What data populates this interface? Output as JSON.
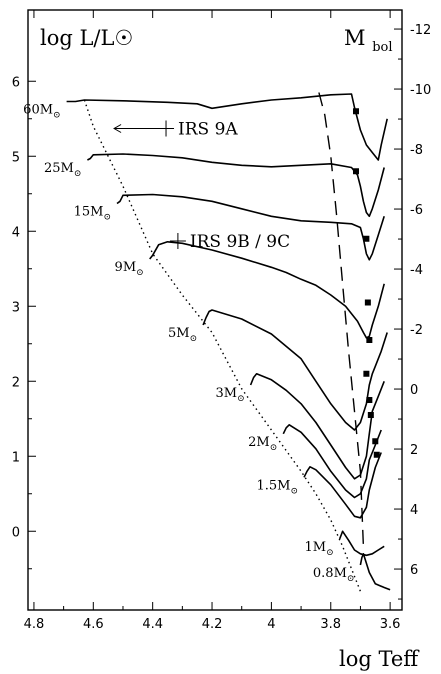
{
  "chart_data": {
    "type": "line",
    "title": "",
    "ylabel_left": "log L/L☉",
    "ylabel_right_main": "M",
    "ylabel_right_sub": "bol",
    "xlabel": "log Teff",
    "xlim": [
      4.82,
      3.56
    ],
    "ylim": [
      -1.05,
      6.95
    ],
    "x_ticks": [
      "4.8",
      "4.6",
      "4.4",
      "4.2",
      "4",
      "3.8",
      "3.6"
    ],
    "y_ticks_left": [
      "6",
      "5",
      "4",
      "3",
      "2",
      "1",
      "0"
    ],
    "y_ticks_right": [
      "-12",
      "-10",
      "-8",
      "-6",
      "-4",
      "-2",
      "0",
      "2",
      "4",
      "6"
    ],
    "tracks": [
      {
        "label_main": "60M",
        "label_sub": "⊙",
        "x": [
          4.69,
          4.66,
          4.63,
          4.5,
          4.35,
          4.25,
          4.2,
          4.1,
          4.0,
          3.9,
          3.8,
          3.73,
          3.72,
          3.7,
          3.68,
          3.66,
          3.64,
          3.63,
          3.61
        ],
        "y": [
          5.73,
          5.73,
          5.75,
          5.74,
          5.72,
          5.7,
          5.64,
          5.7,
          5.75,
          5.78,
          5.82,
          5.83,
          5.65,
          5.35,
          5.15,
          5.05,
          4.95,
          5.15,
          5.5
        ]
      },
      {
        "label_main": "25M",
        "label_sub": "⊙",
        "x": [
          4.62,
          4.61,
          4.6,
          4.5,
          4.4,
          4.3,
          4.2,
          4.1,
          4.0,
          3.9,
          3.8,
          3.73,
          3.71,
          3.7,
          3.69,
          3.68,
          3.67,
          3.66,
          3.64,
          3.62
        ],
        "y": [
          4.95,
          4.97,
          5.02,
          5.03,
          5.01,
          4.98,
          4.92,
          4.88,
          4.86,
          4.88,
          4.9,
          4.85,
          4.75,
          4.6,
          4.4,
          4.25,
          4.2,
          4.3,
          4.55,
          4.85
        ]
      },
      {
        "label_main": "15M",
        "label_sub": "⊙",
        "x": [
          4.52,
          4.51,
          4.5,
          4.4,
          4.3,
          4.2,
          4.1,
          4.0,
          3.9,
          3.8,
          3.73,
          3.7,
          3.69,
          3.68,
          3.67,
          3.66,
          3.64,
          3.62
        ],
        "y": [
          4.37,
          4.4,
          4.48,
          4.49,
          4.46,
          4.4,
          4.3,
          4.2,
          4.14,
          4.12,
          4.1,
          4.05,
          3.9,
          3.7,
          3.62,
          3.7,
          3.95,
          4.2
        ]
      },
      {
        "label_main": "9M",
        "label_sub": "⊙",
        "x": [
          4.41,
          4.4,
          4.38,
          4.35,
          4.3,
          4.2,
          4.1,
          4.0,
          3.95,
          3.9,
          3.85,
          3.8,
          3.75,
          3.71,
          3.69,
          3.68,
          3.67,
          3.66,
          3.64,
          3.62
        ],
        "y": [
          3.63,
          3.68,
          3.82,
          3.86,
          3.84,
          3.75,
          3.64,
          3.52,
          3.45,
          3.36,
          3.28,
          3.15,
          3.0,
          2.8,
          2.65,
          2.58,
          2.6,
          2.75,
          3.0,
          3.3
        ]
      },
      {
        "label_main": "5M",
        "label_sub": "⊙",
        "x": [
          4.23,
          4.22,
          4.21,
          4.2,
          4.1,
          4.0,
          3.9,
          3.85,
          3.8,
          3.75,
          3.72,
          3.7,
          3.68,
          3.67,
          3.66,
          3.65,
          3.63,
          3.61
        ],
        "y": [
          2.75,
          2.85,
          2.93,
          2.95,
          2.83,
          2.63,
          2.3,
          2.0,
          1.7,
          1.45,
          1.35,
          1.45,
          1.7,
          1.95,
          2.1,
          2.2,
          2.4,
          2.65
        ]
      },
      {
        "label_main": "3M",
        "label_sub": "⊙",
        "x": [
          4.07,
          4.06,
          4.05,
          4.0,
          3.95,
          3.9,
          3.85,
          3.8,
          3.75,
          3.72,
          3.7,
          3.68,
          3.67,
          3.66,
          3.64,
          3.62
        ],
        "y": [
          1.95,
          2.05,
          2.1,
          2.02,
          1.88,
          1.7,
          1.45,
          1.15,
          0.85,
          0.7,
          0.75,
          1.0,
          1.3,
          1.6,
          1.8,
          2.0
        ]
      },
      {
        "label_main": "2M",
        "label_sub": "⊙",
        "x": [
          3.96,
          3.95,
          3.94,
          3.9,
          3.85,
          3.8,
          3.75,
          3.72,
          3.7,
          3.68,
          3.67,
          3.65,
          3.63
        ],
        "y": [
          1.3,
          1.38,
          1.42,
          1.32,
          1.1,
          0.8,
          0.55,
          0.45,
          0.5,
          0.7,
          0.95,
          1.15,
          1.35
        ]
      },
      {
        "label_main": "1.5M",
        "label_sub": "⊙",
        "x": [
          3.89,
          3.88,
          3.87,
          3.85,
          3.8,
          3.75,
          3.72,
          3.7,
          3.68,
          3.67,
          3.65,
          3.63
        ],
        "y": [
          0.72,
          0.8,
          0.86,
          0.82,
          0.62,
          0.36,
          0.2,
          0.18,
          0.32,
          0.55,
          0.85,
          1.05
        ]
      },
      {
        "label_main": "1M",
        "label_sub": "⊙",
        "x": [
          3.77,
          3.765,
          3.76,
          3.74,
          3.72,
          3.7,
          3.68,
          3.66,
          3.64,
          3.62
        ],
        "y": [
          -0.1,
          -0.05,
          0.0,
          -0.12,
          -0.25,
          -0.3,
          -0.32,
          -0.3,
          -0.25,
          -0.2
        ]
      },
      {
        "label_main": "0.8M",
        "label_sub": "⊙",
        "x": [
          3.7,
          3.695,
          3.69,
          3.67,
          3.65,
          3.62,
          3.6
        ],
        "y": [
          -0.45,
          -0.35,
          -0.3,
          -0.55,
          -0.7,
          -0.75,
          -0.78
        ]
      }
    ],
    "zams_curve": {
      "x": [
        4.63,
        4.6,
        4.5,
        4.4,
        4.3,
        4.2,
        4.1,
        4.0,
        3.9,
        3.85,
        3.8,
        3.76,
        3.73,
        3.7
      ],
      "y": [
        5.75,
        5.4,
        4.6,
        3.7,
        3.15,
        2.65,
        1.9,
        1.35,
        0.8,
        0.5,
        0.15,
        -0.2,
        -0.5,
        -0.8
      ]
    },
    "dashed_curve": {
      "x": [
        3.84,
        3.82,
        3.8,
        3.78,
        3.76,
        3.74,
        3.72,
        3.7,
        3.69
      ],
      "y": [
        5.85,
        5.55,
        5.0,
        4.2,
        3.3,
        2.4,
        1.6,
        0.8,
        -0.2
      ]
    },
    "markers": [
      {
        "x": 3.715,
        "y": 5.6
      },
      {
        "x": 3.715,
        "y": 4.8
      },
      {
        "x": 3.68,
        "y": 3.9
      },
      {
        "x": 3.675,
        "y": 3.05
      },
      {
        "x": 3.67,
        "y": 2.55
      },
      {
        "x": 3.68,
        "y": 2.1
      },
      {
        "x": 3.67,
        "y": 1.75
      },
      {
        "x": 3.665,
        "y": 1.55
      },
      {
        "x": 3.65,
        "y": 1.2
      },
      {
        "x": 3.645,
        "y": 1.02
      }
    ],
    "sources": [
      {
        "label": "IRS 9A",
        "x": 4.355,
        "y": 5.37,
        "err_left": 4.53
      },
      {
        "label": "IRS 9B / 9C",
        "x": 4.315,
        "y": 3.87,
        "err_left": 4.315
      }
    ]
  }
}
